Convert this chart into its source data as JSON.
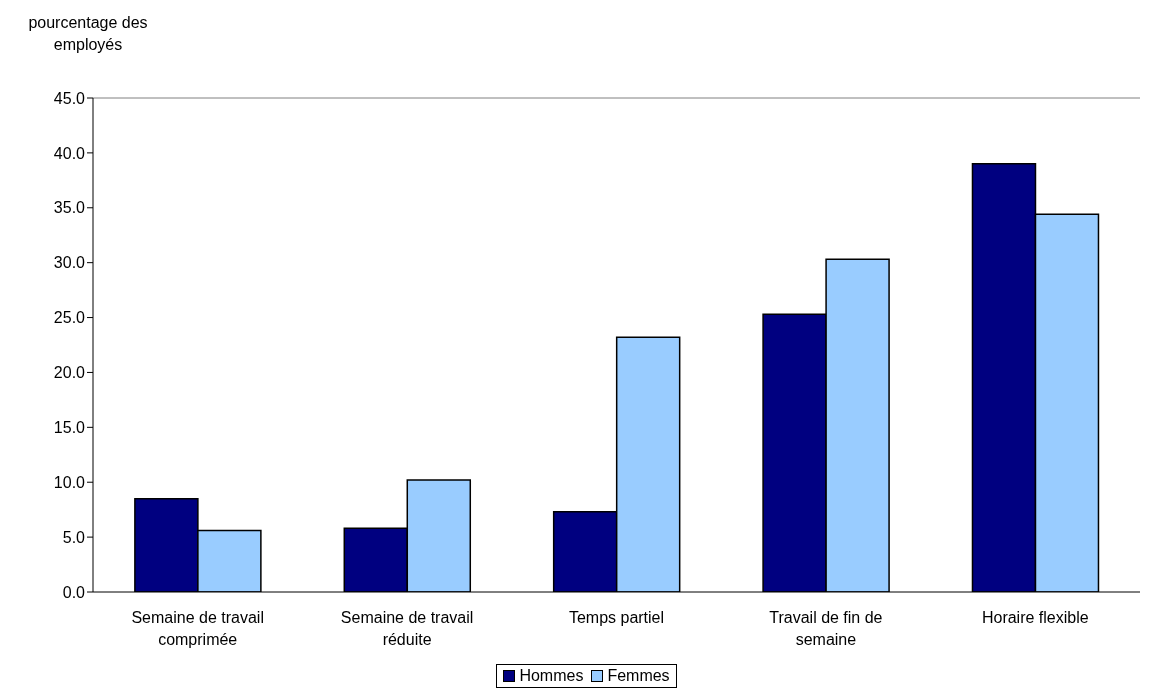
{
  "chart_data": {
    "type": "bar",
    "ylabel": "pourcentage des employés",
    "categories": [
      "Semaine de travail comprimée",
      "Semaine de travail réduite",
      "Temps partiel",
      "Travail de fin de semaine",
      "Horaire flexible"
    ],
    "series": [
      {
        "name": "Hommes",
        "color": "#000080",
        "values": [
          8.5,
          5.8,
          7.3,
          25.3,
          39.0
        ]
      },
      {
        "name": "Femmes",
        "color": "#99ccff",
        "values": [
          5.6,
          10.2,
          23.2,
          30.3,
          34.4
        ]
      }
    ],
    "ylim": [
      0,
      45
    ],
    "yticks": [
      {
        "value": 0,
        "label": "0.0"
      },
      {
        "value": 5,
        "label": "5.0"
      },
      {
        "value": 10,
        "label": "10.0"
      },
      {
        "value": 15,
        "label": "15.0"
      },
      {
        "value": 20,
        "label": "20.0"
      },
      {
        "value": 25,
        "label": "25.0"
      },
      {
        "value": 30,
        "label": "30.0"
      },
      {
        "value": 35,
        "label": "35.0"
      },
      {
        "value": 40,
        "label": "40.0"
      },
      {
        "value": 45,
        "label": "45.0"
      }
    ],
    "grid": false,
    "legend": "bottom"
  }
}
